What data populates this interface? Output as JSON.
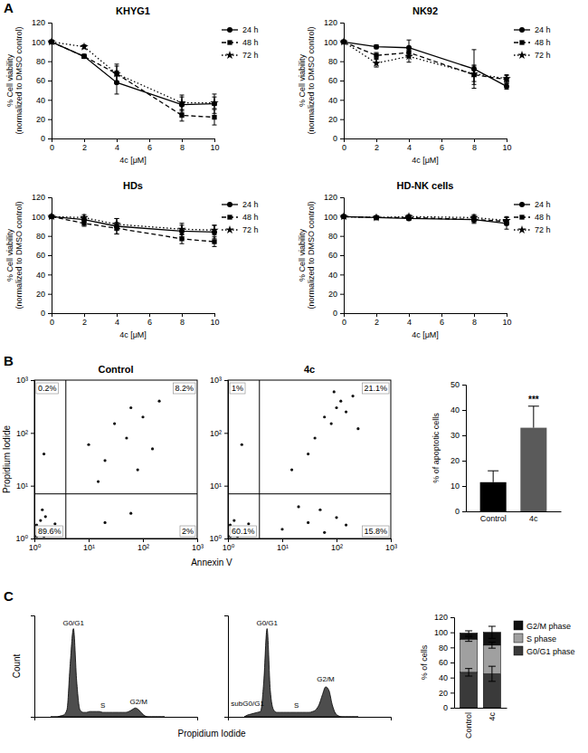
{
  "panel_labels": [
    "A",
    "B",
    "C"
  ],
  "chart_data": [
    {
      "type": "line",
      "title": "KHYG1",
      "xlabel": "4c [μM]",
      "ylabel": "% Cell viability (normalized to DMSO control)",
      "x": [
        0,
        2,
        4,
        8,
        10
      ],
      "xlim": [
        0,
        10
      ],
      "xticks": [
        0,
        2,
        4,
        6,
        8,
        10
      ],
      "ylim": [
        0,
        120
      ],
      "yticks": [
        0,
        20,
        40,
        60,
        80,
        100,
        120
      ],
      "legend": "right",
      "series": [
        {
          "name": "24 h",
          "color": "#000000",
          "marker": "circle",
          "line_style": "solid",
          "values": [
            100,
            85,
            58,
            35,
            36
          ],
          "errors": [
            0,
            2,
            12,
            8,
            10
          ]
        },
        {
          "name": "48 h",
          "color": "#000000",
          "marker": "square",
          "line_style": "dashed",
          "values": [
            100,
            85,
            67,
            24,
            22
          ],
          "errors": [
            0,
            2,
            8,
            6,
            8
          ]
        },
        {
          "name": "72 h",
          "color": "#000000",
          "marker": "star",
          "line_style": "dotted",
          "values": [
            100,
            95,
            67,
            37,
            37
          ],
          "errors": [
            0,
            2,
            10,
            8,
            6
          ]
        }
      ]
    },
    {
      "type": "line",
      "title": "NK92",
      "xlabel": "4c [μM]",
      "ylabel": "% Cell viability (normalized to DMSO control)",
      "x": [
        0,
        2,
        4,
        8,
        10
      ],
      "xlim": [
        0,
        10
      ],
      "xticks": [
        0,
        2,
        4,
        6,
        8,
        10
      ],
      "ylim": [
        0,
        120
      ],
      "yticks": [
        0,
        20,
        40,
        60,
        80,
        100,
        120
      ],
      "legend": "right",
      "series": [
        {
          "name": "24 h",
          "color": "#000000",
          "marker": "circle",
          "line_style": "solid",
          "values": [
            100,
            95,
            94,
            72,
            54
          ],
          "errors": [
            0,
            2,
            8,
            20,
            3
          ]
        },
        {
          "name": "48 h",
          "color": "#000000",
          "marker": "square",
          "line_style": "dashed",
          "values": [
            100,
            86,
            89,
            66,
            61
          ],
          "errors": [
            0,
            3,
            5,
            10,
            4
          ]
        },
        {
          "name": "72 h",
          "color": "#000000",
          "marker": "star",
          "line_style": "dotted",
          "values": [
            100,
            78,
            85,
            67,
            62
          ],
          "errors": [
            0,
            4,
            6,
            8,
            4
          ]
        }
      ]
    },
    {
      "type": "line",
      "title": "HDs",
      "xlabel": "4c [μM]",
      "ylabel": "% Cell viability (normalized to DMSO control)",
      "x": [
        0,
        2,
        4,
        8,
        10
      ],
      "xlim": [
        0,
        10
      ],
      "xticks": [
        0,
        2,
        4,
        6,
        8,
        10
      ],
      "ylim": [
        0,
        120
      ],
      "yticks": [
        0,
        20,
        40,
        60,
        80,
        100,
        120
      ],
      "legend": "right",
      "series": [
        {
          "name": "24 h",
          "color": "#000000",
          "marker": "circle",
          "line_style": "solid",
          "values": [
            100,
            97,
            90,
            85,
            84
          ],
          "errors": [
            0,
            3,
            8,
            6,
            7
          ]
        },
        {
          "name": "48 h",
          "color": "#000000",
          "marker": "square",
          "line_style": "dashed",
          "values": [
            100,
            93,
            88,
            77,
            74
          ],
          "errors": [
            0,
            3,
            6,
            5,
            5
          ]
        },
        {
          "name": "72 h",
          "color": "#000000",
          "marker": "star",
          "line_style": "dotted",
          "values": [
            100,
            99,
            92,
            87,
            86
          ],
          "errors": [
            0,
            3,
            6,
            6,
            5
          ]
        }
      ]
    },
    {
      "type": "line",
      "title": "HD-NK cells",
      "xlabel": "4c [μM]",
      "ylabel": "% Cell viability (normalized to DMSO control)",
      "x": [
        0,
        2,
        4,
        8,
        10
      ],
      "xlim": [
        0,
        10
      ],
      "xticks": [
        0,
        2,
        4,
        6,
        8,
        10
      ],
      "ylim": [
        0,
        120
      ],
      "yticks": [
        0,
        20,
        40,
        60,
        80,
        100,
        120
      ],
      "legend": "right",
      "series": [
        {
          "name": "24 h",
          "color": "#000000",
          "marker": "circle",
          "line_style": "solid",
          "values": [
            100,
            99,
            98,
            97,
            93
          ],
          "errors": [
            0,
            1,
            2,
            4,
            6
          ]
        },
        {
          "name": "48 h",
          "color": "#000000",
          "marker": "square",
          "line_style": "dashed",
          "values": [
            100,
            99,
            99,
            97,
            95
          ],
          "errors": [
            0,
            1,
            2,
            3,
            4
          ]
        },
        {
          "name": "72 h",
          "color": "#000000",
          "marker": "star",
          "line_style": "dotted",
          "values": [
            100,
            99,
            100,
            99,
            96
          ],
          "errors": [
            0,
            1,
            2,
            3,
            4
          ]
        }
      ]
    },
    {
      "type": "scatter",
      "title": "Control",
      "xlabel": "Annexin V",
      "ylabel": "Propidium Iodide",
      "log": true,
      "xlim": [
        1,
        1000
      ],
      "ylim": [
        1,
        1000
      ],
      "xticks": [
        {
          "value": 1,
          "label": "10⁰"
        },
        {
          "value": 10,
          "label": "10¹"
        },
        {
          "value": 100,
          "label": "10²"
        },
        {
          "value": 1000,
          "label": "10³"
        }
      ],
      "yticks": [
        {
          "value": 1,
          "label": "10⁰"
        },
        {
          "value": 10,
          "label": "10¹"
        },
        {
          "value": 100,
          "label": "10²"
        },
        {
          "value": 1000,
          "label": "10³"
        }
      ],
      "gate": [
        3.8,
        7
      ],
      "x": [
        1.2,
        1.5,
        1.1,
        1.8,
        1.3,
        2.0,
        1.6,
        1.1,
        2.4,
        1.4,
        20,
        50,
        100,
        15,
        60,
        150,
        30,
        200,
        80,
        10,
        20,
        60,
        1.5
      ],
      "y": [
        1.3,
        1.1,
        1.8,
        1.5,
        2.2,
        1.2,
        2.6,
        1.1,
        1.9,
        3.5,
        30,
        80,
        200,
        12,
        300,
        50,
        150,
        400,
        20,
        60,
        2,
        3,
        40
      ],
      "quadrants": {
        "values": [
          0.2,
          8.2,
          89.6,
          2
        ],
        "value_labels": [
          "0.2%",
          "8.2%",
          "89.6%",
          "2%"
        ]
      }
    },
    {
      "type": "scatter",
      "title": "4c",
      "log": true,
      "xlim": [
        1,
        1000
      ],
      "ylim": [
        1,
        1000
      ],
      "xticks": [
        {
          "value": 1,
          "label": "10⁰"
        },
        {
          "value": 10,
          "label": "10¹"
        },
        {
          "value": 100,
          "label": "10²"
        },
        {
          "value": 1000,
          "label": "10³"
        }
      ],
      "yticks": [
        {
          "value": 1,
          "label": "10⁰"
        },
        {
          "value": 10,
          "label": "10¹"
        },
        {
          "value": 100,
          "label": "10²"
        },
        {
          "value": 1000,
          "label": "10³"
        }
      ],
      "gate": [
        3.8,
        7
      ],
      "x": [
        1.2,
        1.5,
        1.1,
        1.8,
        1.3,
        2.0,
        1.1,
        2.4,
        10,
        30,
        60,
        100,
        20,
        150,
        50,
        60,
        100,
        150,
        80,
        200,
        40,
        120,
        30,
        250,
        15,
        90,
        1.8
      ],
      "y": [
        1.3,
        1.1,
        1.8,
        1.5,
        2.2,
        1.2,
        1.1,
        1.9,
        1.5,
        2,
        1.3,
        2.5,
        4,
        1.8,
        3.5,
        200,
        300,
        250,
        150,
        500,
        80,
        400,
        40,
        120,
        20,
        600,
        60
      ],
      "quadrants": {
        "values": [
          1,
          21.1,
          60.1,
          15.8
        ],
        "value_labels": [
          "1%",
          "21.1%",
          "60.1%",
          "15.8%"
        ]
      }
    },
    {
      "type": "bar",
      "ylabel": "% of apoptotic cells",
      "categories": [
        "Control",
        "4c"
      ],
      "values": [
        11.5,
        33
      ],
      "errors": [
        4.5,
        8.5
      ],
      "colors": [
        "#000000",
        "#5a5a5a"
      ],
      "ylim": [
        0,
        50
      ],
      "yticks": [
        0,
        10,
        20,
        30,
        40,
        50
      ],
      "annotations": [
        null,
        "***"
      ]
    },
    {
      "type": "area",
      "xlabel": "Propidium Iodide",
      "ylabel": "Count",
      "tick_labels": false,
      "xlim": [
        0,
        100
      ],
      "ylim": [
        0,
        115
      ],
      "color": "#4d4d4d",
      "x": [
        10,
        12,
        14,
        16,
        18,
        20,
        22,
        24,
        26,
        28,
        30,
        32,
        34,
        36,
        38,
        40,
        42,
        44,
        46,
        48,
        50,
        52,
        54,
        56,
        58,
        60,
        62,
        64,
        66,
        68,
        70,
        72,
        74,
        76,
        78,
        80
      ],
      "values": [
        0,
        0,
        0,
        1,
        2,
        8,
        60,
        100,
        40,
        8,
        5,
        5,
        6,
        6,
        6,
        6,
        5,
        5,
        5,
        5,
        5,
        5,
        5,
        5,
        6,
        8,
        10,
        8,
        4,
        1,
        0,
        0,
        0,
        0,
        0,
        0
      ],
      "annotations": [
        {
          "text": "G0/G1",
          "x": 24,
          "y": 104
        },
        {
          "text": "S",
          "x": 42,
          "y": 10
        },
        {
          "text": "G2/M",
          "x": 64,
          "y": 14
        }
      ]
    },
    {
      "type": "area",
      "tick_labels": false,
      "xlim": [
        0,
        100
      ],
      "ylim": [
        0,
        115
      ],
      "color": "#4d4d4d",
      "x": [
        10,
        12,
        14,
        16,
        18,
        20,
        22,
        24,
        26,
        28,
        30,
        32,
        34,
        36,
        38,
        40,
        42,
        44,
        46,
        48,
        50,
        52,
        54,
        56,
        58,
        60,
        62,
        64,
        66,
        68,
        70,
        72,
        74,
        76,
        78,
        80
      ],
      "values": [
        0,
        2,
        3,
        4,
        5,
        6,
        40,
        100,
        30,
        8,
        5,
        5,
        5,
        5,
        5,
        5,
        5,
        5,
        5,
        5,
        5,
        6,
        8,
        14,
        25,
        34,
        30,
        14,
        4,
        1,
        0,
        0,
        0,
        0,
        0,
        0
      ],
      "annotations": [
        {
          "text": "subG0/G1",
          "x": 12,
          "y": 12
        },
        {
          "text": "G0/G1",
          "x": 24,
          "y": 104
        },
        {
          "text": "S",
          "x": 42,
          "y": 10
        },
        {
          "text": "G2/M",
          "x": 60,
          "y": 40
        }
      ]
    },
    {
      "type": "bar",
      "stacked": true,
      "ylabel": "% of cells",
      "categories": [
        "Control",
        "4c"
      ],
      "ylim": [
        0,
        120
      ],
      "yticks": [
        0,
        20,
        40,
        60,
        80,
        100,
        120
      ],
      "legend": "right",
      "series": [
        {
          "name": "G0/G1 phase",
          "color": "#3a3a3a",
          "values": [
            47,
            45
          ],
          "errors": [
            5,
            10
          ]
        },
        {
          "name": "S phase",
          "color": "#a0a0a0",
          "values": [
            44,
            38
          ],
          "errors": [
            3,
            4
          ]
        },
        {
          "name": "G2/M phase",
          "color": "#111111",
          "values": [
            8,
            17
          ],
          "errors": [
            3,
            8
          ]
        }
      ]
    }
  ]
}
